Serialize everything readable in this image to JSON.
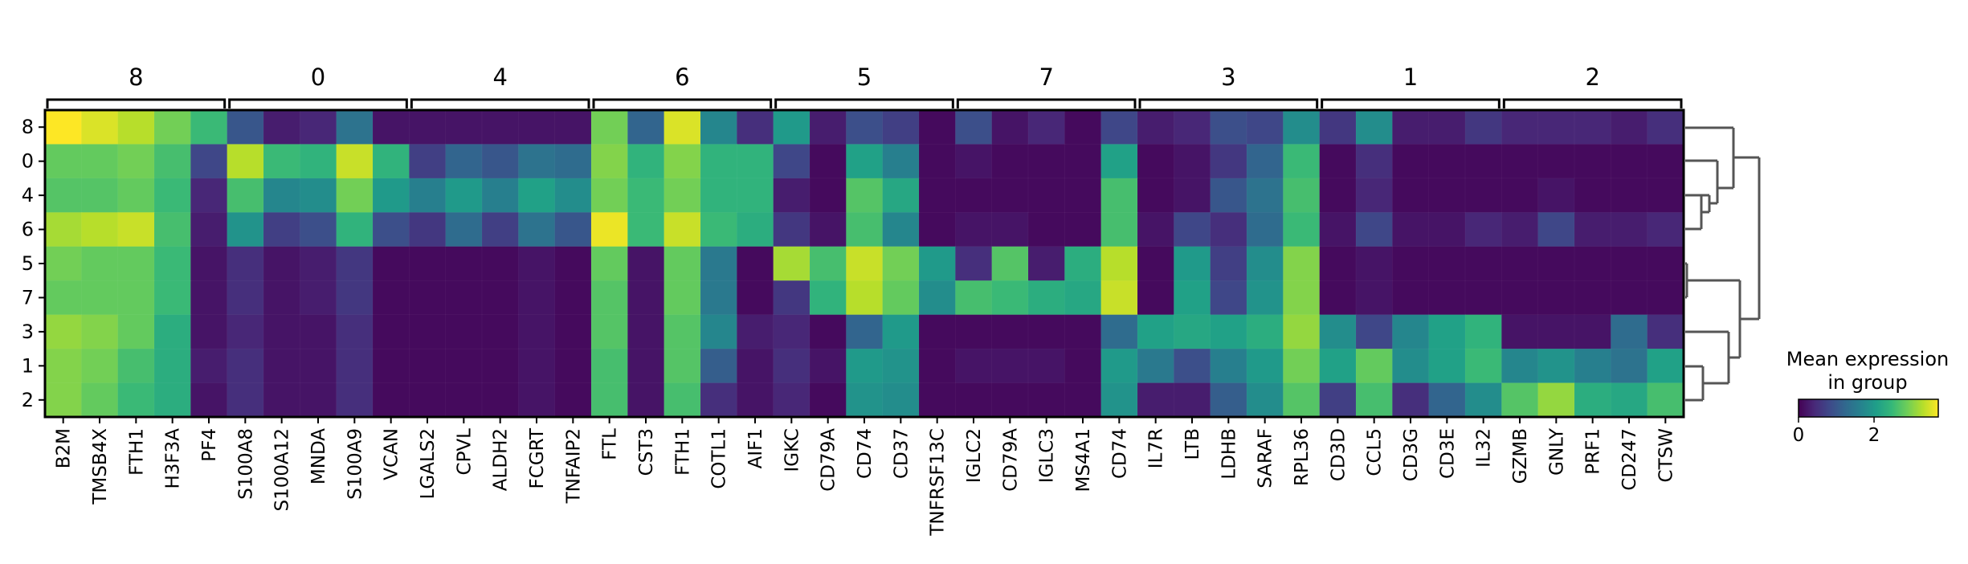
{
  "chart_data": {
    "type": "heatmap",
    "title": "",
    "rows": [
      "8",
      "0",
      "4",
      "6",
      "5",
      "7",
      "3",
      "1",
      "2"
    ],
    "columns": [
      "B2M",
      "TMSB4X",
      "FTH1",
      "H3F3A",
      "PF4",
      "S100A8",
      "S100A12",
      "MNDA",
      "S100A9",
      "VCAN",
      "LGALS2",
      "CPVL",
      "ALDH2",
      "FCGRT",
      "TNFAIP2",
      "FTL",
      "CST3",
      "FTH1",
      "COTL1",
      "AIF1",
      "IGKC",
      "CD79A",
      "CD74",
      "CD37",
      "TNFRSF13C",
      "IGLC2",
      "CD79A",
      "IGLC3",
      "MS4A1",
      "CD74",
      "IL7R",
      "LTB",
      "LDHB",
      "SARAF",
      "RPL36",
      "CD3D",
      "CCL5",
      "CD3G",
      "CD3E",
      "IL32",
      "GZMB",
      "GNLY",
      "PRF1",
      "CD247",
      "CTSW"
    ],
    "groups": [
      {
        "label": "8",
        "start": 0,
        "end": 4
      },
      {
        "label": "0",
        "start": 5,
        "end": 9
      },
      {
        "label": "4",
        "start": 10,
        "end": 14
      },
      {
        "label": "6",
        "start": 15,
        "end": 19
      },
      {
        "label": "5",
        "start": 20,
        "end": 24
      },
      {
        "label": "7",
        "start": 25,
        "end": 29
      },
      {
        "label": "3",
        "start": 30,
        "end": 34
      },
      {
        "label": "1",
        "start": 35,
        "end": 39
      },
      {
        "label": "2",
        "start": 40,
        "end": 44
      }
    ],
    "values": [
      [
        3.7,
        3.5,
        3.3,
        2.9,
        2.5,
        1.0,
        0.3,
        0.4,
        1.4,
        0.2,
        0.2,
        0.2,
        0.2,
        0.2,
        0.2,
        2.9,
        1.2,
        3.5,
        1.7,
        0.5,
        2.0,
        0.3,
        0.9,
        0.7,
        0.1,
        0.9,
        0.2,
        0.4,
        0.1,
        0.8,
        0.3,
        0.4,
        0.9,
        0.8,
        1.8,
        0.6,
        1.8,
        0.3,
        0.3,
        0.6,
        0.4,
        0.4,
        0.4,
        0.3,
        0.5
      ],
      [
        2.8,
        2.8,
        2.9,
        2.6,
        0.8,
        3.3,
        2.5,
        2.4,
        3.4,
        2.4,
        0.7,
        1.2,
        1.0,
        1.4,
        1.3,
        3.0,
        2.4,
        3.0,
        2.4,
        2.4,
        0.8,
        0.1,
        2.1,
        1.6,
        0.1,
        0.2,
        0.1,
        0.1,
        0.1,
        2.1,
        0.1,
        0.2,
        0.6,
        1.2,
        2.5,
        0.1,
        0.5,
        0.1,
        0.1,
        0.1,
        0.1,
        0.1,
        0.1,
        0.1,
        0.1
      ],
      [
        2.7,
        2.7,
        2.8,
        2.5,
        0.4,
        2.6,
        1.7,
        1.8,
        2.9,
        2.0,
        1.6,
        2.0,
        1.6,
        2.1,
        1.8,
        2.9,
        2.5,
        2.9,
        2.4,
        2.4,
        0.3,
        0.1,
        2.7,
        2.2,
        0.1,
        0.1,
        0.1,
        0.1,
        0.1,
        2.6,
        0.1,
        0.2,
        1.0,
        1.4,
        2.6,
        0.1,
        0.4,
        0.1,
        0.1,
        0.1,
        0.1,
        0.2,
        0.1,
        0.1,
        0.1
      ],
      [
        3.2,
        3.3,
        3.4,
        2.6,
        0.3,
        1.9,
        0.7,
        0.9,
        2.4,
        0.9,
        0.6,
        1.3,
        0.7,
        1.4,
        1.0,
        3.6,
        2.5,
        3.4,
        2.5,
        2.3,
        0.6,
        0.2,
        2.6,
        1.7,
        0.1,
        0.2,
        0.2,
        0.1,
        0.1,
        2.6,
        0.2,
        0.8,
        0.5,
        1.3,
        2.5,
        0.2,
        0.8,
        0.2,
        0.2,
        0.4,
        0.3,
        0.8,
        0.3,
        0.3,
        0.4
      ],
      [
        2.9,
        2.8,
        2.8,
        2.5,
        0.2,
        0.5,
        0.2,
        0.3,
        0.6,
        0.1,
        0.1,
        0.1,
        0.1,
        0.2,
        0.1,
        2.8,
        0.2,
        2.8,
        1.5,
        0.1,
        3.2,
        2.6,
        3.4,
        2.9,
        2.0,
        0.5,
        2.7,
        0.3,
        2.3,
        3.3,
        0.1,
        2.0,
        0.7,
        1.8,
        3.0,
        0.1,
        0.2,
        0.1,
        0.1,
        0.1,
        0.1,
        0.1,
        0.1,
        0.1,
        0.1
      ],
      [
        2.8,
        2.8,
        2.8,
        2.5,
        0.2,
        0.5,
        0.2,
        0.3,
        0.6,
        0.1,
        0.1,
        0.1,
        0.1,
        0.2,
        0.1,
        2.7,
        0.2,
        2.8,
        1.5,
        0.1,
        0.6,
        2.4,
        3.3,
        2.8,
        1.8,
        2.6,
        2.5,
        2.3,
        2.2,
        3.4,
        0.1,
        2.1,
        0.8,
        1.9,
        3.0,
        0.1,
        0.2,
        0.1,
        0.1,
        0.1,
        0.1,
        0.1,
        0.1,
        0.1,
        0.1
      ],
      [
        3.1,
        3.0,
        2.8,
        2.3,
        0.2,
        0.4,
        0.2,
        0.2,
        0.5,
        0.1,
        0.1,
        0.1,
        0.1,
        0.2,
        0.1,
        2.7,
        0.2,
        2.7,
        1.7,
        0.3,
        0.4,
        0.1,
        1.2,
        2.0,
        0.1,
        0.1,
        0.1,
        0.1,
        0.1,
        1.3,
        2.1,
        2.2,
        2.1,
        2.3,
        3.1,
        1.8,
        0.8,
        1.7,
        2.1,
        2.4,
        0.2,
        0.2,
        0.2,
        1.3,
        0.5
      ],
      [
        3.0,
        2.9,
        2.6,
        2.3,
        0.3,
        0.5,
        0.2,
        0.2,
        0.5,
        0.1,
        0.1,
        0.1,
        0.1,
        0.2,
        0.1,
        2.6,
        0.2,
        2.7,
        1.1,
        0.2,
        0.5,
        0.2,
        2.0,
        1.9,
        0.1,
        0.2,
        0.2,
        0.2,
        0.1,
        2.0,
        1.5,
        0.9,
        1.6,
        2.0,
        2.9,
        2.1,
        2.8,
        1.8,
        2.1,
        2.5,
        1.7,
        1.9,
        1.6,
        1.4,
        2.1
      ],
      [
        3.0,
        2.8,
        2.5,
        2.3,
        0.2,
        0.5,
        0.2,
        0.2,
        0.5,
        0.1,
        0.1,
        0.1,
        0.1,
        0.2,
        0.1,
        2.6,
        0.2,
        2.6,
        0.5,
        0.2,
        0.4,
        0.1,
        1.9,
        1.8,
        0.1,
        0.1,
        0.1,
        0.1,
        0.1,
        1.9,
        0.3,
        0.3,
        1.1,
        1.8,
        2.7,
        0.7,
        2.6,
        0.5,
        1.2,
        1.8,
        2.7,
        3.1,
        2.3,
        2.2,
        2.6
      ]
    ],
    "colormap": "viridis",
    "viridis_stops": [
      "#440154",
      "#482878",
      "#3e4989",
      "#31688e",
      "#26828e",
      "#1f9e89",
      "#35b779",
      "#6ece58",
      "#b5de2b",
      "#fde725"
    ],
    "vmin": 0,
    "vmax": 3.7,
    "colorbar": {
      "title_line1": "Mean expression",
      "title_line2": "in group",
      "ticks": [
        "0",
        "2"
      ],
      "tick_values": [
        0,
        2
      ]
    },
    "dendrogram": "right",
    "grid": false
  }
}
